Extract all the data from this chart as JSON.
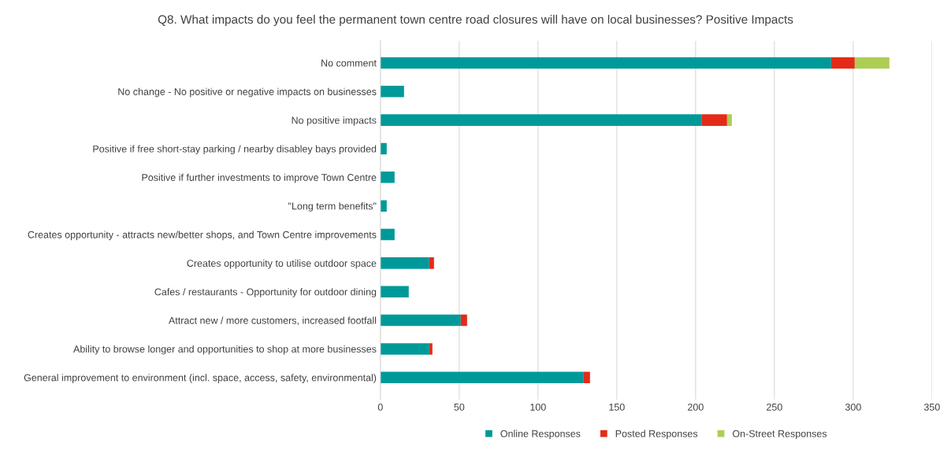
{
  "chart_data": {
    "type": "bar",
    "orientation": "horizontal",
    "stacked": true,
    "title": "Q8. What impacts do you feel the permanent town centre road closures will have on local businesses? Positive Impacts",
    "categories": [
      "No comment",
      "No change - No positive or negative impacts on businesses",
      "No positive impacts",
      "Positive if free short-stay parking / nearby disabley bays provided",
      "Positive if further investments to improve Town Centre",
      "\"Long term benefits\"",
      "Creates opportunity - attracts new/better shops, and Town Centre improvements",
      "Creates opportunity to utilise outdoor space",
      "Cafes / restaurants - Opportunity for outdoor dining",
      "Attract new / more customers, increased footfall",
      "Ability to browse longer and opportunities to shop at more businesses",
      "General improvement to environment (incl. space, access, safety, environmental)"
    ],
    "series": [
      {
        "name": "Online Responses",
        "color": "#009999",
        "values": [
          286,
          15,
          204,
          4,
          9,
          4,
          9,
          31,
          18,
          51,
          31,
          129
        ]
      },
      {
        "name": "Posted Responses",
        "color": "#e42b17",
        "values": [
          15,
          0,
          16,
          0,
          0,
          0,
          0,
          3,
          0,
          4,
          2,
          4
        ]
      },
      {
        "name": "On-Street Responses",
        "color": "#aecd55",
        "values": [
          22,
          0,
          3,
          0,
          0,
          0,
          0,
          0,
          0,
          0,
          0,
          0
        ]
      }
    ],
    "xlim": [
      0,
      350
    ],
    "xticks": [
      0,
      50,
      100,
      150,
      200,
      250,
      300,
      350
    ],
    "grid": "x",
    "legend": "bottom"
  }
}
